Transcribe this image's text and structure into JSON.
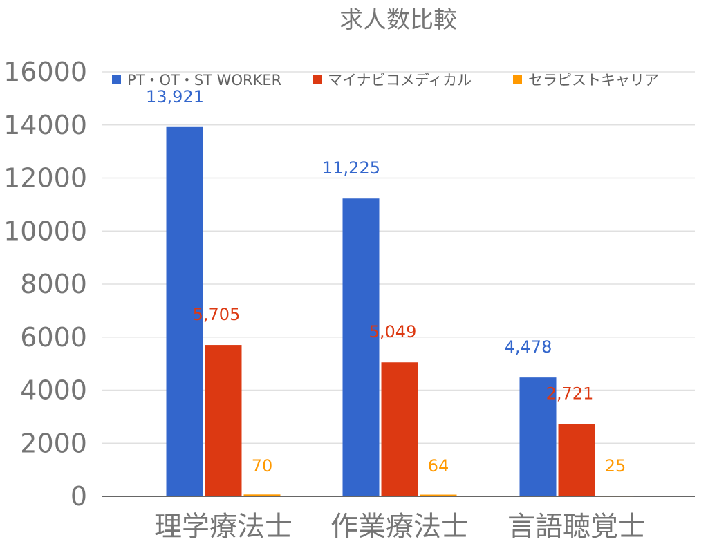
{
  "chart_data": {
    "type": "bar",
    "title": "求人数比較",
    "categories": [
      "理学療法士",
      "作業療法士",
      "言語聴覚士"
    ],
    "series": [
      {
        "name": "PT・OT・ST WORKER",
        "color": "#3366cc",
        "values": [
          13921,
          11225,
          4478
        ],
        "labels": [
          "13,921",
          "11,225",
          "4,478"
        ]
      },
      {
        "name": "マイナビコメディカル",
        "color": "#dc3912",
        "values": [
          5705,
          5049,
          2721
        ],
        "labels": [
          "5,705",
          "5,049",
          "2,721"
        ]
      },
      {
        "name": "セラピストキャリア",
        "color": "#ff9900",
        "values": [
          70,
          64,
          25
        ],
        "labels": [
          "70",
          "64",
          "25"
        ]
      }
    ],
    "yticks": [
      "0",
      "2000",
      "4000",
      "6000",
      "8000",
      "10000",
      "12000",
      "14000",
      "16000"
    ],
    "ylim": [
      0,
      16000
    ],
    "grid": true,
    "legend_position": "top"
  }
}
